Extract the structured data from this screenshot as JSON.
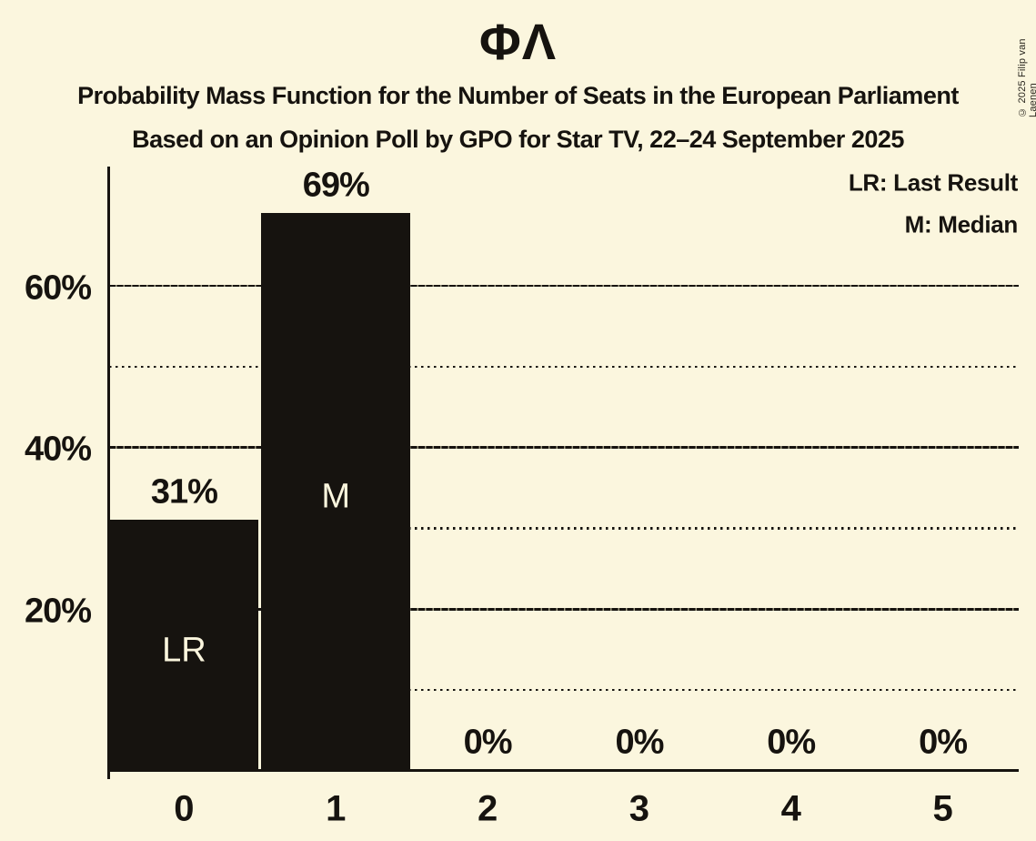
{
  "title": "ΦΛ",
  "subtitle1": "Probability Mass Function for the Number of Seats in the European Parliament",
  "subtitle2": "Based on an Opinion Poll by GPO for Star TV, 22–24 September 2025",
  "copyright": "© 2025 Filip van Laenen",
  "legend": {
    "lr": "LR: Last Result",
    "m": "M: Median"
  },
  "colors": {
    "background": "#fbf6de",
    "ink": "#16130f",
    "bar": "#16130f",
    "bar_label_text": "#fbf6de"
  },
  "chart_data": {
    "type": "bar",
    "title": "ΦΛ",
    "xlabel": "",
    "ylabel": "",
    "categories": [
      "0",
      "1",
      "2",
      "3",
      "4",
      "5"
    ],
    "values": [
      31,
      69,
      0,
      0,
      0,
      0
    ],
    "value_labels": [
      "31%",
      "69%",
      "0%",
      "0%",
      "0%",
      "0%"
    ],
    "bar_labels": [
      "LR",
      "M",
      "",
      "",
      "",
      ""
    ],
    "ylim": [
      0,
      75
    ],
    "yticks": [
      {
        "value": 20,
        "label": "20%"
      },
      {
        "value": 40,
        "label": "40%"
      },
      {
        "value": 60,
        "label": "60%"
      }
    ],
    "solid_gridlines": [
      20,
      40,
      60
    ],
    "dotted_gridlines": [
      10,
      30,
      50
    ],
    "grid": true,
    "legend_position": "top-right"
  }
}
